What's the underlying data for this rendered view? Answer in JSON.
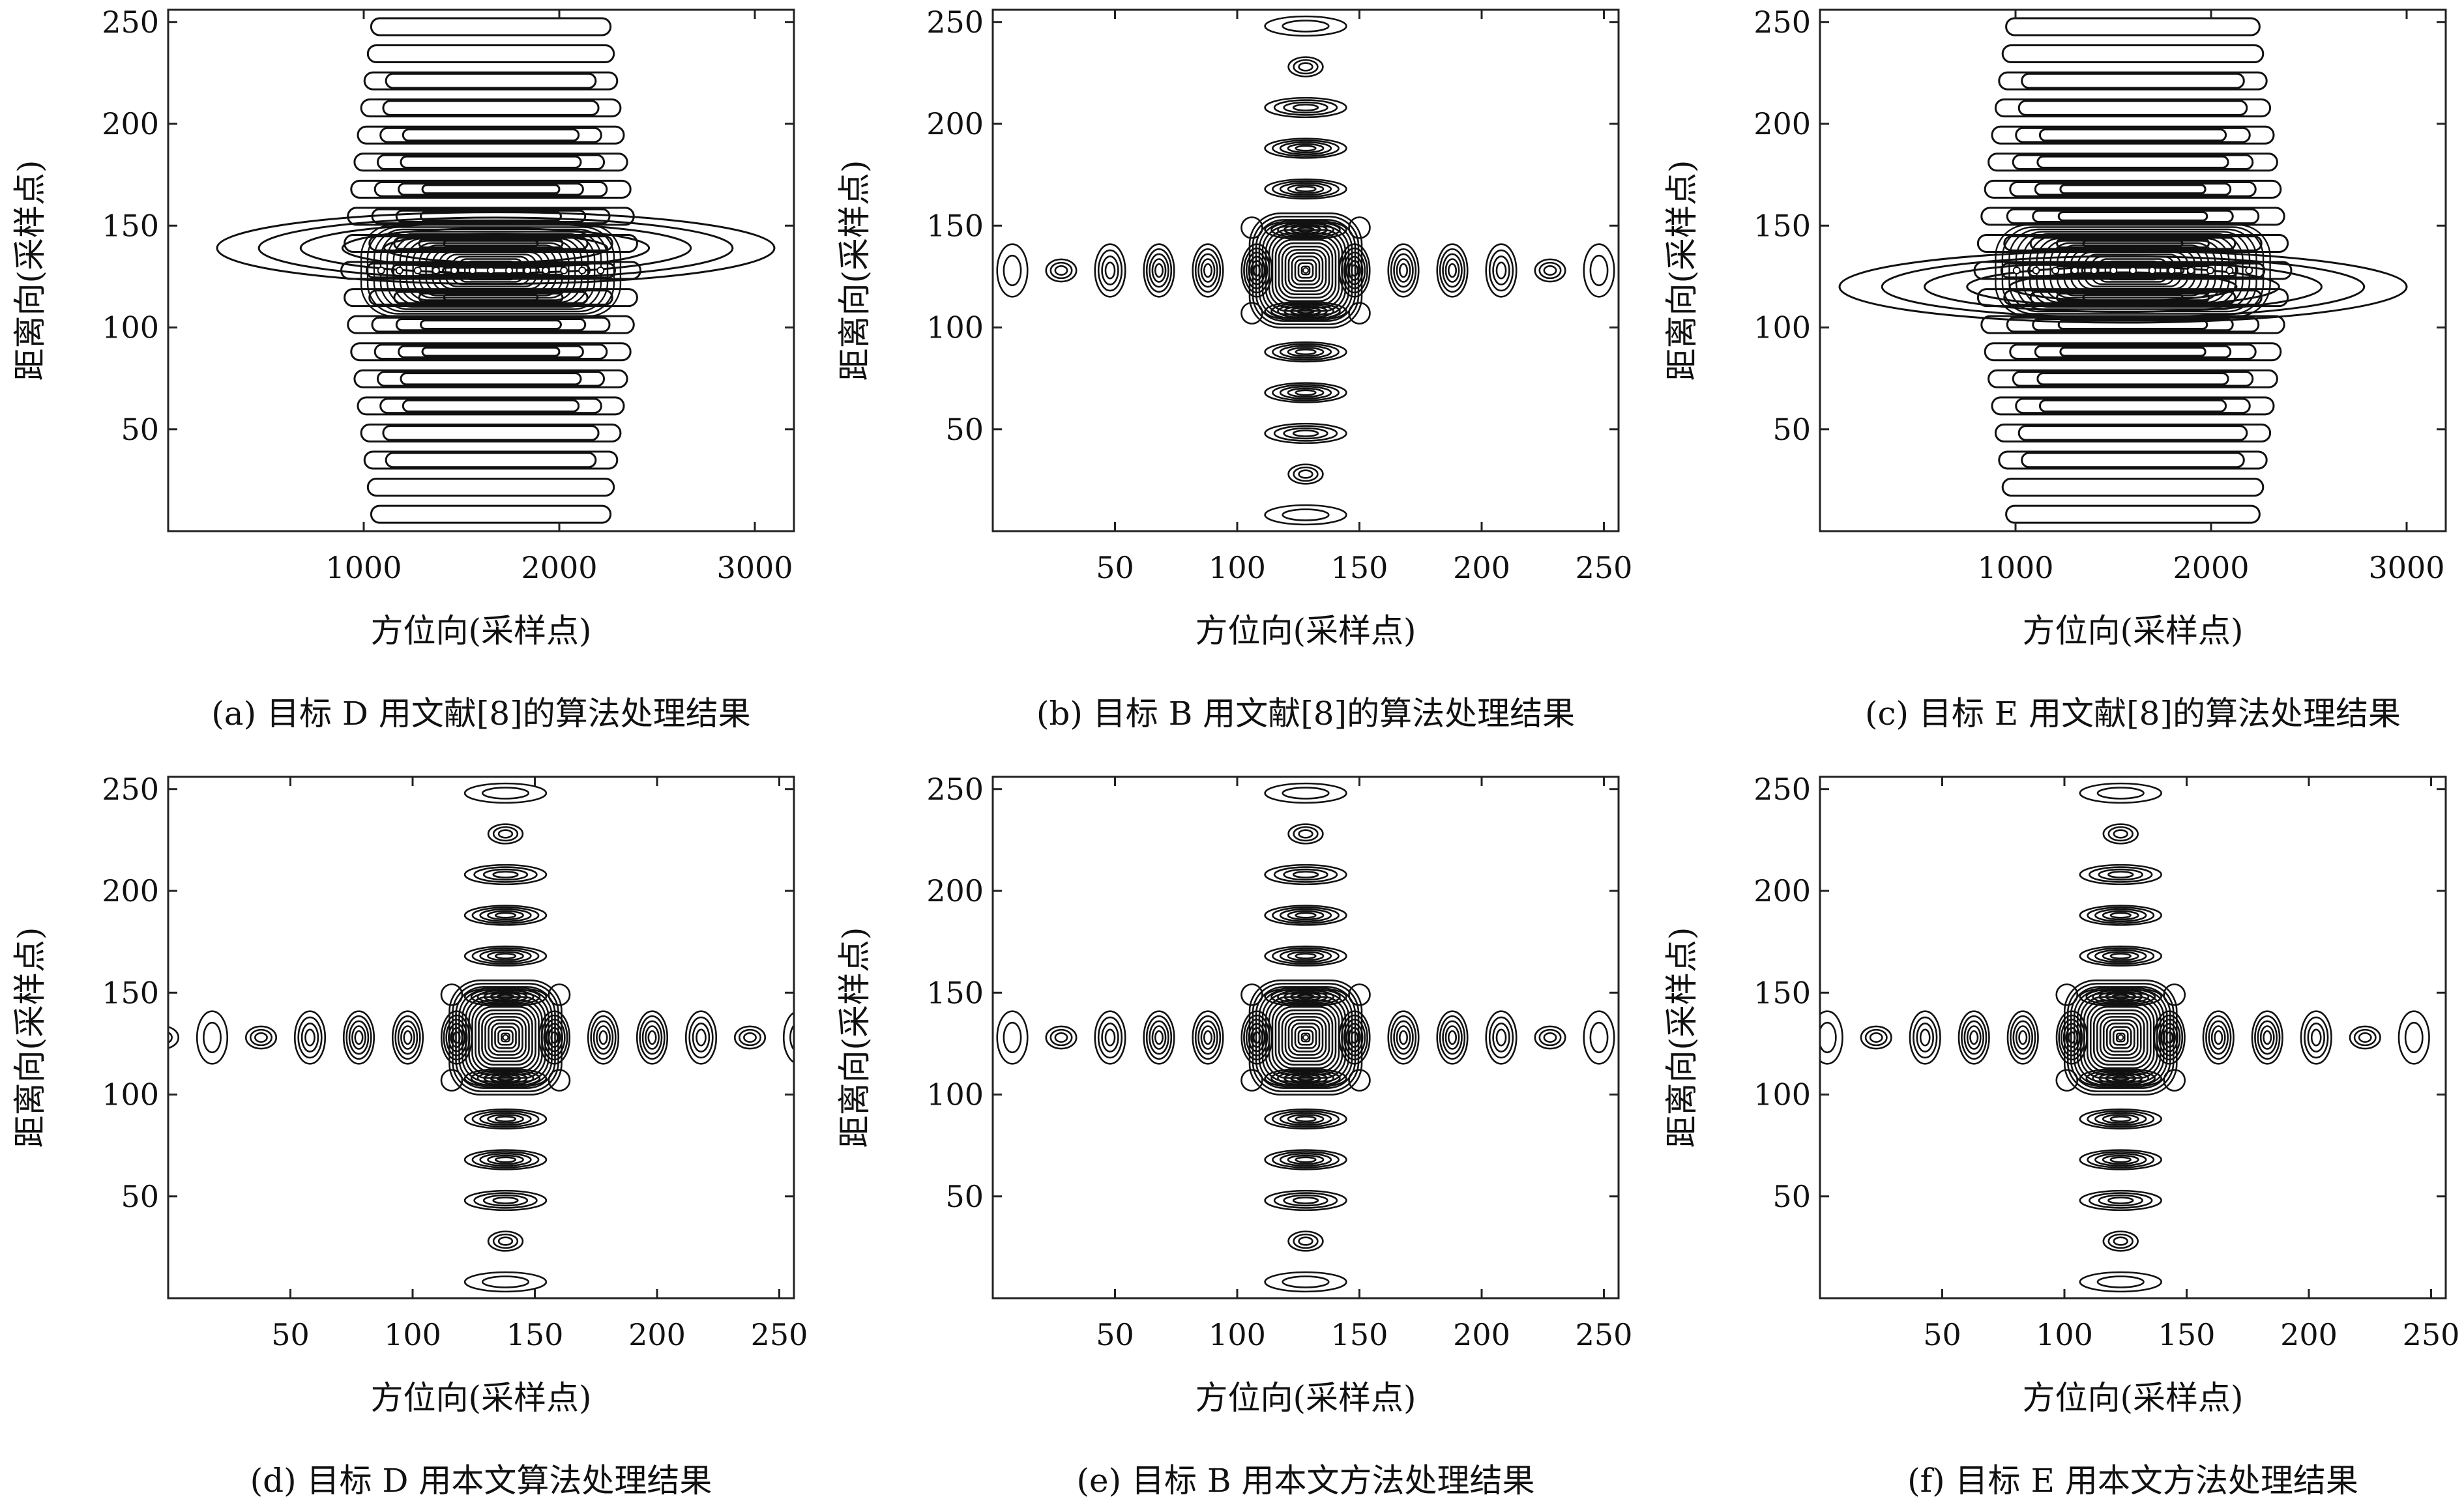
{
  "chart_data": [
    {
      "type": "contour",
      "caption": "(a) 目标 D 用文献[8]的算法处理结果",
      "xlabel": "方位向(采样点)",
      "ylabel": "距离向(采样点)",
      "xlim": [
        0,
        3200
      ],
      "ylim": [
        0,
        256
      ],
      "xticks": [
        1000,
        2000,
        3000
      ],
      "yticks": [
        50,
        100,
        150,
        200,
        250
      ],
      "center": [
        1700,
        128
      ],
      "vertical_lobes": 15,
      "horizontal_lobes": 0,
      "extent_x": [
        800,
        2500
      ],
      "wide_lobe_rows": [
        125,
        130,
        135
      ],
      "smear_x": [
        250,
        3100
      ],
      "smear_y": 139,
      "lobe_width": 1400
    },
    {
      "type": "contour",
      "caption": "(b) 目标 B 用文献[8]的算法处理结果",
      "xlabel": "方位向(采样点)",
      "ylabel": "距离向(采样点)",
      "xlim": [
        0,
        256
      ],
      "ylim": [
        0,
        256
      ],
      "xticks": [
        50,
        100,
        150,
        200,
        250
      ],
      "yticks": [
        50,
        100,
        150,
        200,
        250
      ],
      "center": [
        128,
        128
      ],
      "vertical_lobes": 11,
      "horizontal_lobes": 12
    },
    {
      "type": "contour",
      "caption": "(c) 目标 E 用文献[8]的算法处理结果",
      "xlabel": "方位向(采样点)",
      "ylabel": "距离向(采样点)",
      "xlim": [
        0,
        3200
      ],
      "ylim": [
        0,
        256
      ],
      "xticks": [
        1000,
        2000,
        3000
      ],
      "yticks": [
        50,
        100,
        150,
        200,
        250
      ],
      "center": [
        1600,
        128
      ],
      "vertical_lobes": 16,
      "horizontal_lobes": 0,
      "extent_x": [
        700,
        2500
      ],
      "wide_lobe_rows": [
        120,
        128,
        136
      ],
      "smear_x": [
        100,
        3000
      ],
      "smear_y": 120,
      "lobe_width": 1500
    },
    {
      "type": "contour",
      "caption": "(d) 目标 D 用本文算法处理结果",
      "xlabel": "方位向(采样点)",
      "ylabel": "距离向(采样点)",
      "xlim": [
        0,
        256
      ],
      "ylim": [
        0,
        256
      ],
      "xticks": [
        50,
        100,
        150,
        200,
        250
      ],
      "yticks": [
        50,
        100,
        150,
        200,
        250
      ],
      "center": [
        138,
        128
      ],
      "vertical_lobes": 11,
      "horizontal_lobes": 12
    },
    {
      "type": "contour",
      "caption": "(e) 目标 B 用本文方法处理结果",
      "xlabel": "方位向(采样点)",
      "ylabel": "距离向(采样点)",
      "xlim": [
        0,
        256
      ],
      "ylim": [
        0,
        256
      ],
      "xticks": [
        50,
        100,
        150,
        200,
        250
      ],
      "yticks": [
        50,
        100,
        150,
        200,
        250
      ],
      "center": [
        128,
        128
      ],
      "vertical_lobes": 11,
      "horizontal_lobes": 12
    },
    {
      "type": "contour",
      "caption": "(f) 目标 E 用本文方法处理结果",
      "xlabel": "方位向(采样点)",
      "ylabel": "距离向(采样点)",
      "xlim": [
        0,
        256
      ],
      "ylim": [
        0,
        256
      ],
      "xticks": [
        50,
        100,
        150,
        200,
        250
      ],
      "yticks": [
        50,
        100,
        150,
        200,
        250
      ],
      "center": [
        123,
        128
      ],
      "vertical_lobes": 11,
      "horizontal_lobes": 12
    }
  ],
  "style": {
    "line_color": "#111111",
    "frame_color": "#222222",
    "background": "#ffffff"
  }
}
